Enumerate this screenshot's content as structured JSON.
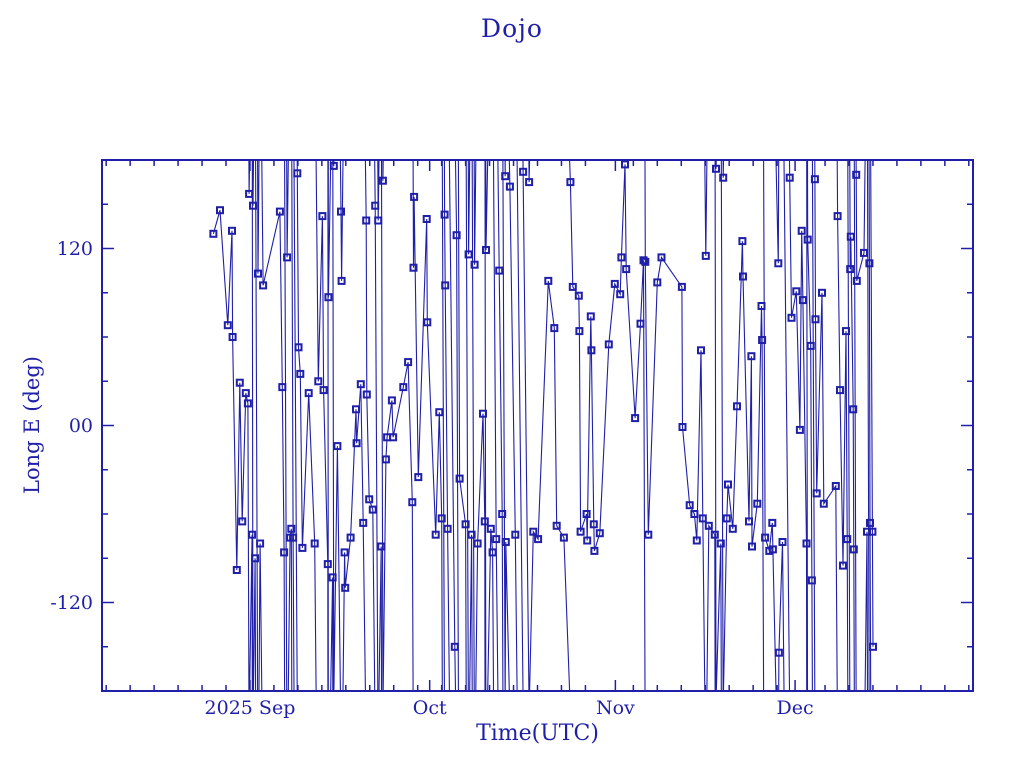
{
  "title": "Dojo",
  "colors": {
    "ink": "#1f1fa8",
    "background": "#ffffff"
  },
  "chart_data": {
    "type": "line",
    "title": "Dojo",
    "xlabel": "Time(UTC)",
    "ylabel": "Long E (deg)",
    "x_unit": "days since 2025-09-01 00:00 UTC",
    "x_range_days": [
      -24.7,
      120.7
    ],
    "y_range": [
      -180,
      180
    ],
    "x_major_ticks": [
      {
        "day": 0,
        "label": "2025 Sep"
      },
      {
        "day": 30,
        "label": "Oct"
      },
      {
        "day": 61,
        "label": "Nov"
      },
      {
        "day": 91,
        "label": "Dec"
      }
    ],
    "x_minor_tick_step_days": 4,
    "y_major_ticks": [
      {
        "value": 120,
        "label": "120"
      },
      {
        "value": 0,
        "label": "00"
      },
      {
        "value": -120,
        "label": "-120"
      }
    ],
    "y_minor_tick_step": 30,
    "grid": false,
    "legend": "none",
    "wrap_note": "Longitude wraps at +/-180 deg; each point is [day, lon_deg, extra_west_wraps_since_previous(optional)]",
    "points": [
      [
        -6.1,
        130
      ],
      [
        -5.0,
        146
      ],
      [
        -3.7,
        68
      ],
      [
        -3.0,
        132
      ],
      [
        -2.9,
        60
      ],
      [
        -2.2,
        -98
      ],
      [
        -1.7,
        29
      ],
      [
        -1.3,
        -65
      ],
      [
        -0.7,
        22
      ],
      [
        -0.35,
        15
      ],
      [
        -0.15,
        157,
        -1
      ],
      [
        0.35,
        -74
      ],
      [
        0.5,
        149,
        -1
      ],
      [
        0.85,
        -90
      ],
      [
        1.35,
        103,
        -1
      ],
      [
        1.7,
        -80
      ],
      [
        2.2,
        95,
        -1
      ],
      [
        5.0,
        145
      ],
      [
        5.4,
        26
      ],
      [
        5.7,
        -86
      ],
      [
        6.2,
        114,
        -1
      ],
      [
        6.7,
        -76
      ],
      [
        6.9,
        -70
      ],
      [
        7.2,
        -76,
        -1
      ],
      [
        7.9,
        171,
        -1
      ],
      [
        8.1,
        53
      ],
      [
        8.4,
        35
      ],
      [
        8.75,
        -83
      ],
      [
        9.8,
        22
      ],
      [
        10.8,
        -80
      ],
      [
        11.4,
        30,
        -1
      ],
      [
        12.1,
        142
      ],
      [
        12.3,
        24
      ],
      [
        13.0,
        -94
      ],
      [
        13.1,
        87,
        -1
      ],
      [
        13.8,
        -103
      ],
      [
        14.0,
        176,
        -1
      ],
      [
        14.6,
        -14
      ],
      [
        15.2,
        145,
        -1
      ],
      [
        15.3,
        98
      ],
      [
        15.8,
        -86
      ],
      [
        15.9,
        -110
      ],
      [
        16.8,
        -76
      ],
      [
        17.7,
        11
      ],
      [
        17.8,
        -12
      ],
      [
        18.5,
        28
      ],
      [
        18.9,
        -66
      ],
      [
        19.4,
        139
      ],
      [
        19.5,
        21
      ],
      [
        19.9,
        -50
      ],
      [
        20.5,
        -57
      ],
      [
        20.9,
        149
      ],
      [
        21.4,
        139,
        -1
      ],
      [
        21.9,
        -82
      ],
      [
        22.2,
        166,
        -1
      ],
      [
        22.7,
        -23
      ],
      [
        22.9,
        -8
      ],
      [
        23.7,
        17
      ],
      [
        23.9,
        -8
      ],
      [
        25.6,
        26
      ],
      [
        26.4,
        43
      ],
      [
        27.1,
        -52
      ],
      [
        27.3,
        107,
        -1
      ],
      [
        27.4,
        155
      ],
      [
        28.1,
        -35,
        -1
      ],
      [
        29.5,
        140
      ],
      [
        29.6,
        70
      ],
      [
        31.0,
        -74
      ],
      [
        31.6,
        9
      ],
      [
        32.0,
        -63
      ],
      [
        32.5,
        143,
        -1
      ],
      [
        32.6,
        95
      ],
      [
        33.0,
        -70
      ],
      [
        34.2,
        -150,
        -1
      ],
      [
        34.5,
        129
      ],
      [
        35.0,
        -36,
        -1
      ],
      [
        36.0,
        -67
      ],
      [
        36.5,
        116,
        -1
      ],
      [
        37.0,
        -74
      ],
      [
        37.5,
        109,
        -1
      ],
      [
        38.0,
        -80
      ],
      [
        38.9,
        8
      ],
      [
        39.2,
        -65
      ],
      [
        39.4,
        119,
        -1
      ],
      [
        40.2,
        -70
      ],
      [
        40.5,
        -86
      ],
      [
        41.1,
        -77,
        -1
      ],
      [
        41.6,
        105
      ],
      [
        42.1,
        -60
      ],
      [
        42.6,
        169,
        -1
      ],
      [
        42.7,
        -79
      ],
      [
        43.4,
        162
      ],
      [
        44.3,
        -74,
        -1
      ],
      [
        45.6,
        172,
        -1
      ],
      [
        46.6,
        165,
        -1
      ],
      [
        47.3,
        -72
      ],
      [
        48.1,
        -77
      ],
      [
        49.8,
        98
      ],
      [
        50.8,
        66
      ],
      [
        51.2,
        -68
      ],
      [
        52.4,
        -76
      ],
      [
        53.5,
        165
      ],
      [
        53.9,
        94
      ],
      [
        54.9,
        88
      ],
      [
        55.0,
        64
      ],
      [
        55.2,
        -72
      ],
      [
        56.2,
        -60
      ],
      [
        56.3,
        -78
      ],
      [
        56.9,
        74
      ],
      [
        57.0,
        51
      ],
      [
        57.4,
        -67
      ],
      [
        57.5,
        -85
      ],
      [
        58.4,
        -73
      ],
      [
        59.9,
        55
      ],
      [
        60.9,
        96
      ],
      [
        61.8,
        89
      ],
      [
        62.0,
        114
      ],
      [
        62.6,
        177
      ],
      [
        62.8,
        106
      ],
      [
        64.3,
        5
      ],
      [
        65.2,
        69
      ],
      [
        65.7,
        112
      ],
      [
        66.0,
        111,
        -1
      ],
      [
        66.5,
        -74,
        -1
      ],
      [
        68.0,
        97
      ],
      [
        68.7,
        114
      ],
      [
        72.1,
        94
      ],
      [
        72.2,
        -1
      ],
      [
        73.4,
        -54
      ],
      [
        74.2,
        -60
      ],
      [
        74.6,
        -78
      ],
      [
        75.3,
        51
      ],
      [
        75.6,
        -63
      ],
      [
        76.1,
        115,
        -1
      ],
      [
        76.6,
        -68
      ],
      [
        77.6,
        -74
      ],
      [
        77.8,
        174,
        -1
      ],
      [
        78.6,
        -80
      ],
      [
        79.0,
        168,
        -1
      ],
      [
        79.6,
        -63
      ],
      [
        79.8,
        -40
      ],
      [
        80.6,
        -70
      ],
      [
        81.3,
        13
      ],
      [
        82.2,
        125
      ],
      [
        82.3,
        101
      ],
      [
        83.3,
        -65
      ],
      [
        83.7,
        47
      ],
      [
        83.8,
        -82
      ],
      [
        84.7,
        -53
      ],
      [
        85.4,
        81
      ],
      [
        85.5,
        58
      ],
      [
        86.0,
        -76,
        -1
      ],
      [
        86.7,
        -85
      ],
      [
        87.2,
        -66
      ],
      [
        87.3,
        -84
      ],
      [
        88.2,
        110
      ],
      [
        88.3,
        -154
      ],
      [
        88.9,
        -79
      ],
      [
        90.1,
        168,
        -1
      ],
      [
        90.4,
        73
      ],
      [
        91.2,
        91
      ],
      [
        91.8,
        -3
      ],
      [
        92.1,
        132
      ],
      [
        92.3,
        85
      ],
      [
        92.9,
        -80
      ],
      [
        93.1,
        126,
        -1
      ],
      [
        93.6,
        54
      ],
      [
        93.8,
        -105
      ],
      [
        94.3,
        167,
        -1
      ],
      [
        94.4,
        72
      ],
      [
        94.6,
        -46
      ],
      [
        95.5,
        90
      ],
      [
        95.8,
        -53
      ],
      [
        97.8,
        -41
      ],
      [
        98.1,
        142
      ],
      [
        98.5,
        24
      ],
      [
        99.0,
        -95
      ],
      [
        99.5,
        64
      ],
      [
        99.7,
        -77
      ],
      [
        100.2,
        106,
        -1
      ],
      [
        100.3,
        128
      ],
      [
        100.7,
        11
      ],
      [
        100.8,
        -84
      ],
      [
        101.2,
        170,
        -1
      ],
      [
        101.3,
        98
      ],
      [
        102.5,
        117
      ],
      [
        103.0,
        -72
      ],
      [
        103.4,
        110,
        -1
      ],
      [
        103.5,
        -66
      ],
      [
        103.9,
        -72,
        -1
      ],
      [
        104.0,
        -150
      ]
    ]
  }
}
